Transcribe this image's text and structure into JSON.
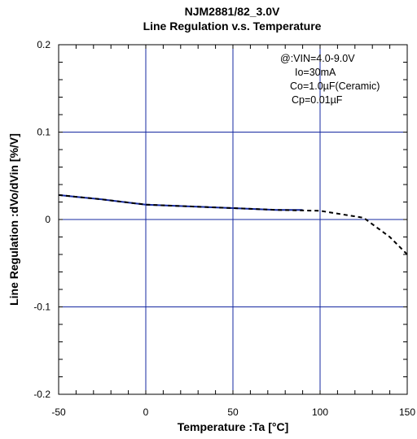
{
  "chart_data": {
    "type": "line",
    "title": "NJM2881/82_3.0V",
    "subtitle": "Line Regulation v.s. Temperature",
    "xlabel": "Temperature :Ta [°C]",
    "ylabel": "Line Regulation :dVo/dVin [%/V]",
    "xlim": [
      -50,
      150
    ],
    "ylim": [
      -0.2,
      0.2
    ],
    "x_ticks": [
      "-50",
      "0",
      "50",
      "100",
      "150"
    ],
    "y_ticks": [
      "-0.2",
      "-0.1",
      "0",
      "0.1",
      "0.2"
    ],
    "grid": true,
    "annotation_lines": [
      "@:VIN=4.0-9.0V",
      "Io=30mA",
      "Co=1.0µF(Ceramic)",
      "Cp=0.01µF"
    ],
    "series": [
      {
        "color": "#1428a0",
        "style": "solid",
        "x": [
          -50,
          -40,
          -25,
          0,
          25,
          50,
          75,
          90
        ],
        "y": [
          0.028,
          0.026,
          0.023,
          0.017,
          0.015,
          0.013,
          0.011,
          0.011
        ]
      },
      {
        "color": "#000000",
        "style": "dashed",
        "x": [
          -50,
          -25,
          0,
          25,
          50,
          75,
          100,
          125,
          140,
          150
        ],
        "y": [
          0.028,
          0.023,
          0.017,
          0.015,
          0.013,
          0.011,
          0.01,
          0.002,
          -0.02,
          -0.04
        ]
      }
    ]
  }
}
